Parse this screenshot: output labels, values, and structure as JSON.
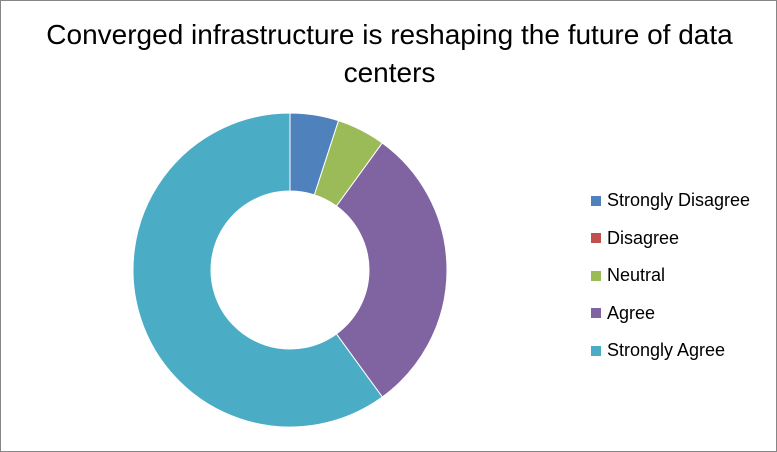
{
  "chart_data": {
    "type": "pie",
    "variant": "doughnut",
    "title": "Converged infrastructure is reshaping the future of data centers",
    "categories": [
      "Strongly Disagree",
      "Disagree",
      "Neutral",
      "Agree",
      "Strongly Agree"
    ],
    "values": [
      5,
      0,
      5,
      30,
      60
    ],
    "unit": "%",
    "colors": [
      "#4f81bd",
      "#c0504d",
      "#9bbb59",
      "#8064a2",
      "#4bacc6"
    ],
    "legend_position": "right",
    "start_angle": "top, clockwise"
  }
}
